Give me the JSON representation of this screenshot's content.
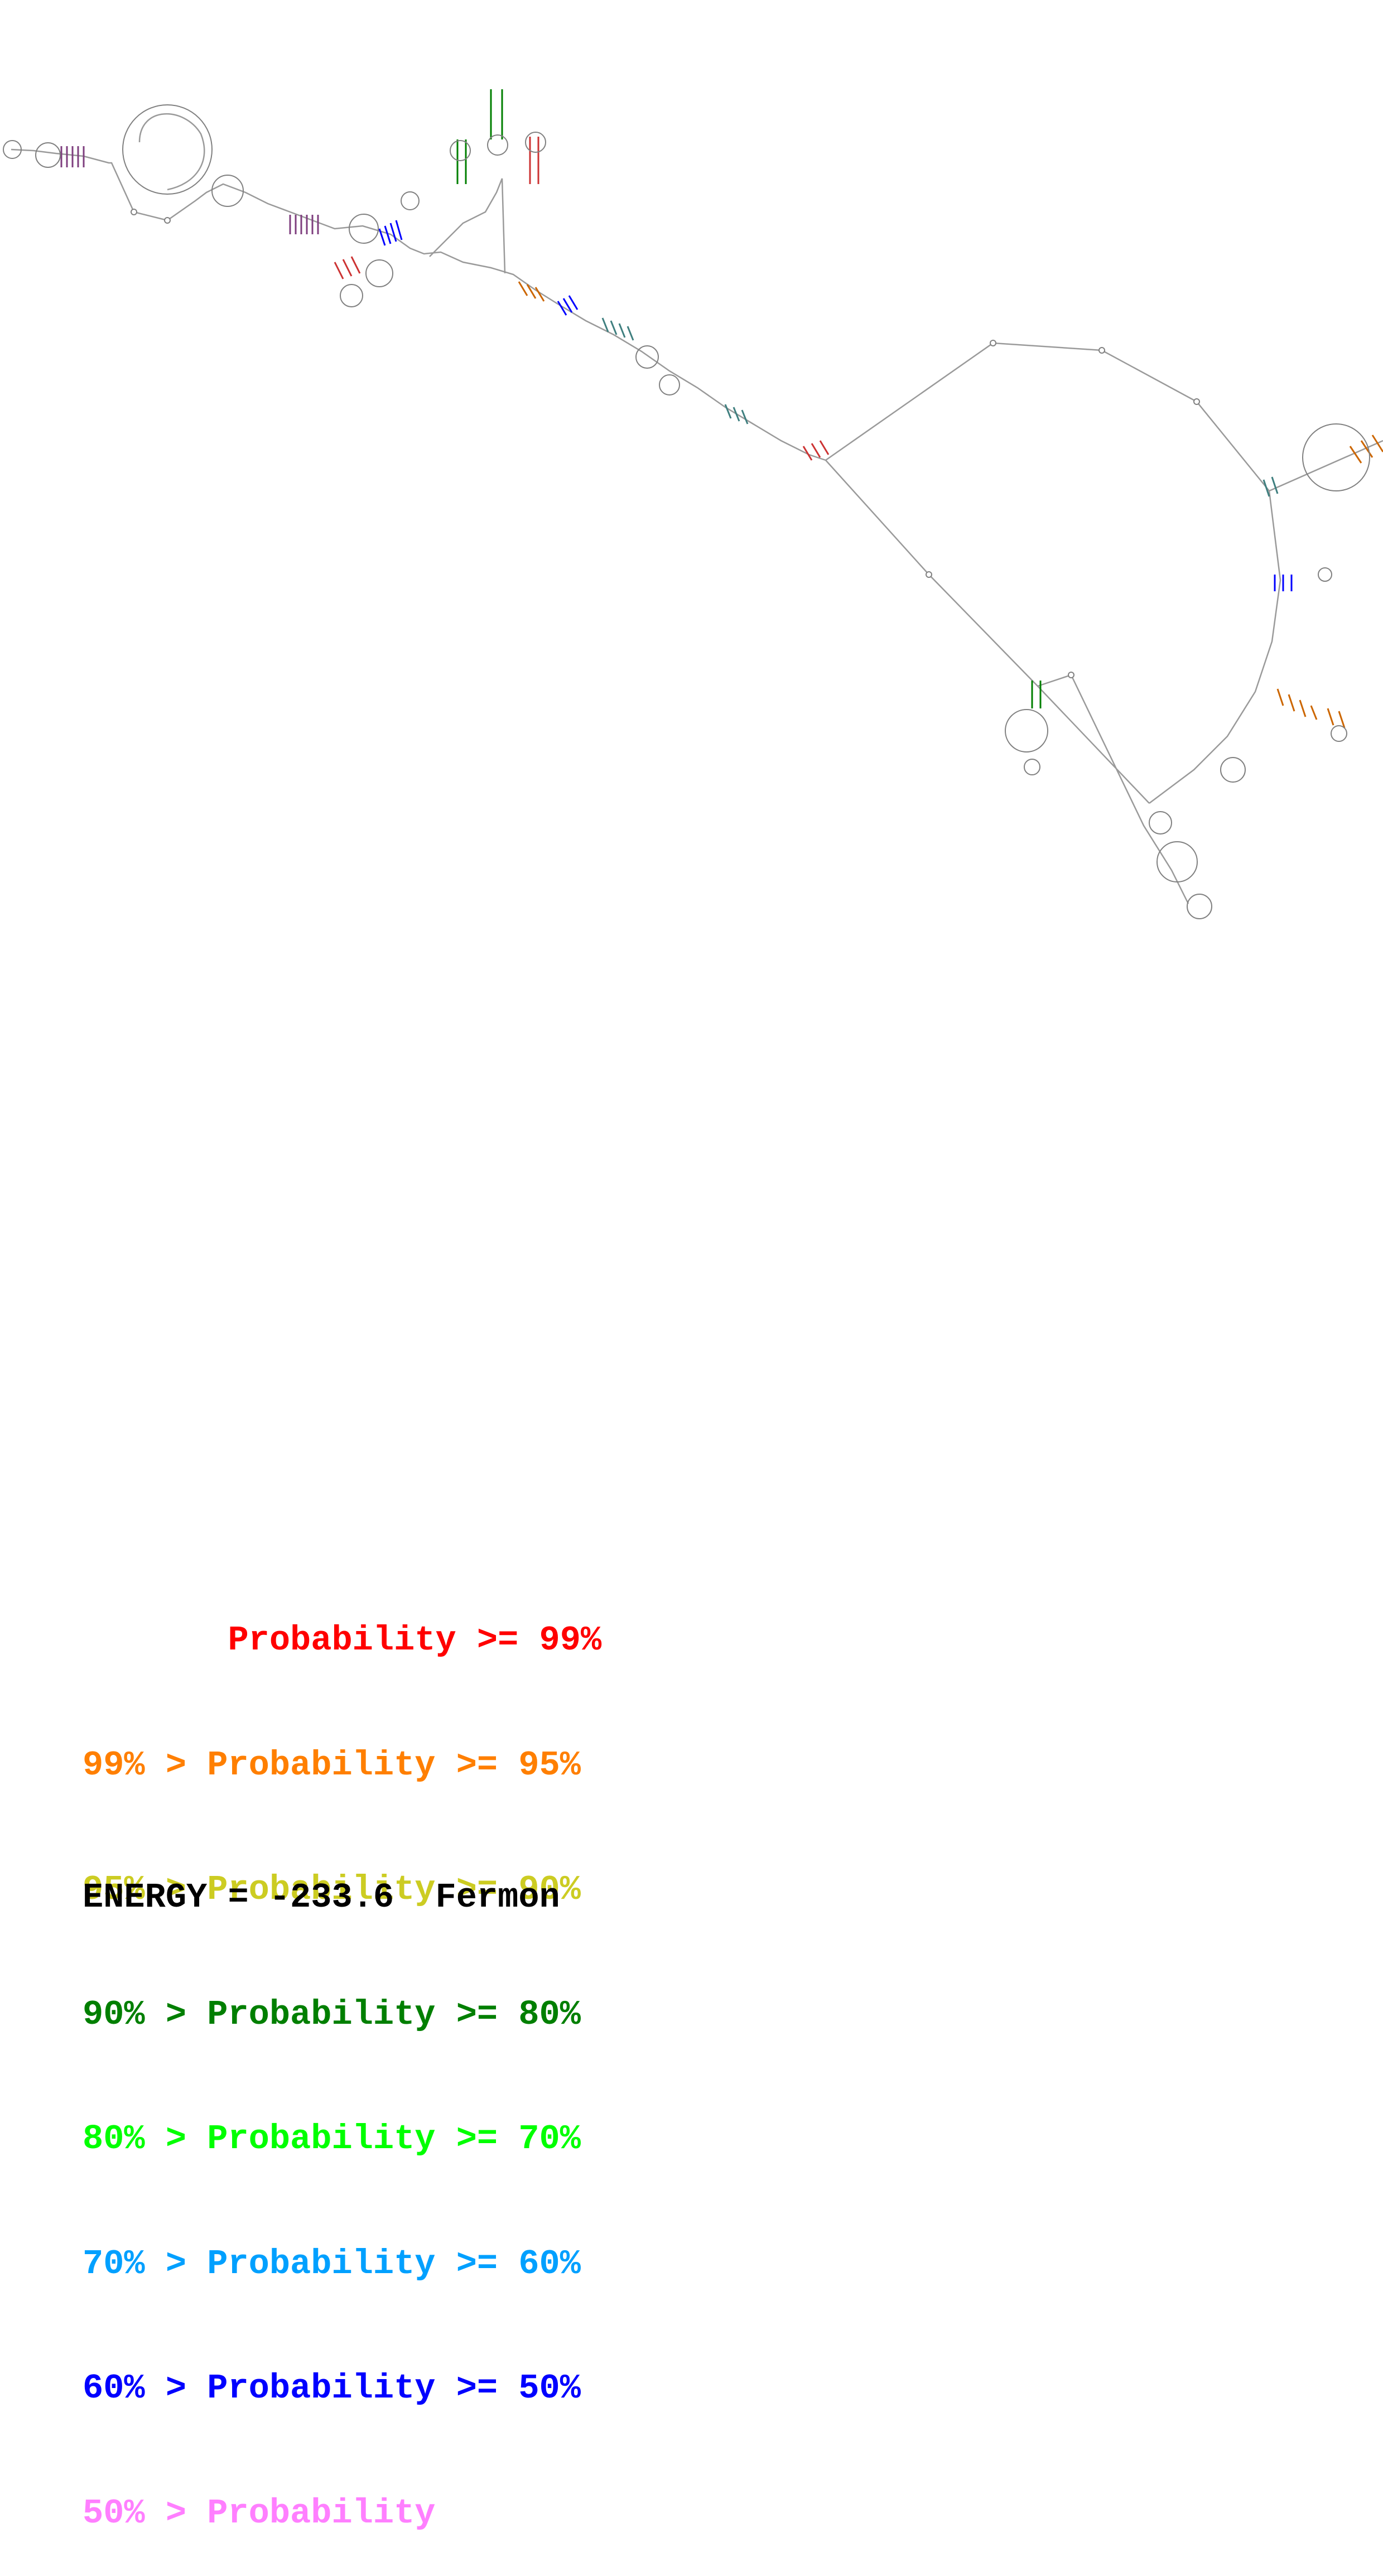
{
  "diagram": {
    "backbone_color": "#9a9a9a",
    "nucleotide_stroke": "#808080"
  },
  "legend": {
    "items": [
      {
        "text": "       Probability >= 99%",
        "color": "#ff0000"
      },
      {
        "text": "99% > Probability >= 95%",
        "color": "#ff7f00"
      },
      {
        "text": "95% > Probability >= 90%",
        "color": "#cccc22"
      },
      {
        "text": "90% > Probability >= 80%",
        "color": "#007f00"
      },
      {
        "text": "80% > Probability >= 70%",
        "color": "#00ff00"
      },
      {
        "text": "70% > Probability >= 60%",
        "color": "#00a0ff"
      },
      {
        "text": "60% > Probability >= 50%",
        "color": "#0000ff"
      },
      {
        "text": "50% > Probability",
        "color": "#ff7fff"
      }
    ]
  },
  "energy": {
    "text": "ENERGY = -233.6  Fermon"
  }
}
